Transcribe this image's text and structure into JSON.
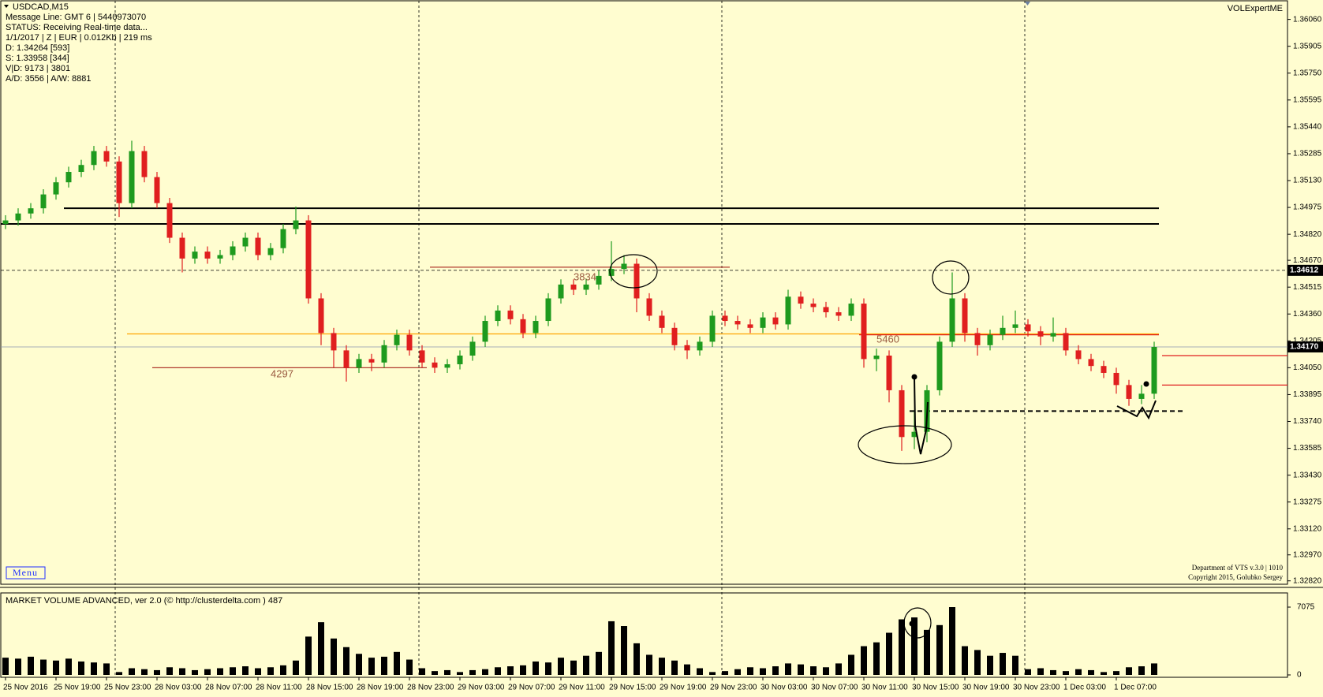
{
  "info": {
    "lines": [
      "Message Line: GMT 6 | 5440973070",
      "STATUS:  Receiving Real-time data...",
      "1/1/2017 | Z | EUR | 0.012Kb | 219 ms",
      "D: 1.34264  [593]",
      "S: 1.33958  [344]",
      "V|D: 9173 | 3801",
      "A/D: 3556 | A/W: 8881"
    ],
    "brand": "VOLExpertME",
    "menu": "Menu",
    "footer": [
      "Department of VTS  v.3.0 | 1010",
      "Copyright 2015, Golubko Sergey"
    ]
  },
  "chart_data": [
    {
      "type": "candlestick",
      "title": "USDCAD,M15",
      "open": [
        1.3488,
        1.349,
        1.3494,
        1.3497,
        1.3505,
        1.3512,
        1.3518,
        1.3522,
        1.353,
        1.3524,
        1.35,
        1.353,
        1.3515,
        1.35,
        1.348,
        1.3468,
        1.3472,
        1.3468,
        1.347,
        1.3475,
        1.348,
        1.347,
        1.3474,
        1.3485,
        1.349,
        1.3445,
        1.3425,
        1.3415,
        1.3405,
        1.341,
        1.3408,
        1.3418,
        1.3424,
        1.3415,
        1.3408,
        1.3405,
        1.3407,
        1.3412,
        1.342,
        1.3432,
        1.3438,
        1.3433,
        1.3425,
        1.3432,
        1.3445,
        1.3453,
        1.345,
        1.3453,
        1.3458,
        1.3462,
        1.3465,
        1.3445,
        1.3435,
        1.3428,
        1.3418,
        1.3415,
        1.342,
        1.3435,
        1.3432,
        1.343,
        1.3428,
        1.3434,
        1.343,
        1.3446,
        1.3442,
        1.344,
        1.3437,
        1.3435,
        1.3442,
        1.341,
        1.3412,
        1.3392,
        1.3365,
        1.3368,
        1.3392,
        1.342,
        1.3445,
        1.3425,
        1.3418,
        1.3424,
        1.3428,
        1.343,
        1.3426,
        1.3423,
        1.3425,
        1.3415,
        1.341,
        1.3406,
        1.3402,
        1.3395,
        1.3387,
        1.339
      ],
      "high": [
        1.3493,
        1.3497,
        1.35,
        1.3508,
        1.3515,
        1.3521,
        1.3525,
        1.3533,
        1.3533,
        1.3527,
        1.3536,
        1.3533,
        1.3518,
        1.3503,
        1.3483,
        1.3475,
        1.3475,
        1.3473,
        1.3478,
        1.3483,
        1.3483,
        1.3477,
        1.3488,
        1.3498,
        1.3493,
        1.3448,
        1.3428,
        1.3418,
        1.3413,
        1.3413,
        1.3421,
        1.3427,
        1.3427,
        1.3418,
        1.3411,
        1.341,
        1.3415,
        1.3423,
        1.3435,
        1.3441,
        1.3441,
        1.3436,
        1.3435,
        1.3448,
        1.3456,
        1.3456,
        1.3456,
        1.3461,
        1.3478,
        1.347,
        1.3468,
        1.3448,
        1.3438,
        1.3431,
        1.3421,
        1.3423,
        1.3438,
        1.3438,
        1.3435,
        1.3433,
        1.3437,
        1.3437,
        1.345,
        1.3449,
        1.3445,
        1.3443,
        1.344,
        1.3445,
        1.3445,
        1.3416,
        1.3415,
        1.3395,
        1.338,
        1.3395,
        1.3423,
        1.346,
        1.3448,
        1.3428,
        1.3427,
        1.3435,
        1.3438,
        1.3433,
        1.3429,
        1.3434,
        1.3428,
        1.3418,
        1.3413,
        1.3409,
        1.3405,
        1.3398,
        1.3395,
        1.342
      ],
      "low": [
        1.3485,
        1.3487,
        1.3491,
        1.3494,
        1.3502,
        1.3509,
        1.3515,
        1.3519,
        1.3521,
        1.3492,
        1.3497,
        1.3512,
        1.3497,
        1.3477,
        1.346,
        1.3465,
        1.3465,
        1.3465,
        1.3467,
        1.3472,
        1.3467,
        1.3467,
        1.3471,
        1.3482,
        1.3442,
        1.3418,
        1.3405,
        1.3397,
        1.3402,
        1.3403,
        1.3405,
        1.3415,
        1.3412,
        1.3405,
        1.3402,
        1.3402,
        1.3404,
        1.3409,
        1.3417,
        1.3429,
        1.343,
        1.3422,
        1.3422,
        1.3429,
        1.3442,
        1.3447,
        1.3447,
        1.345,
        1.3455,
        1.3459,
        1.3437,
        1.3432,
        1.3425,
        1.3415,
        1.341,
        1.3412,
        1.3417,
        1.3429,
        1.3427,
        1.3425,
        1.3425,
        1.3427,
        1.3427,
        1.3439,
        1.3437,
        1.3434,
        1.3432,
        1.3432,
        1.3405,
        1.3403,
        1.3385,
        1.3357,
        1.3358,
        1.3362,
        1.3389,
        1.3417,
        1.342,
        1.3412,
        1.3415,
        1.3421,
        1.3425,
        1.3423,
        1.3418,
        1.342,
        1.3412,
        1.3407,
        1.3403,
        1.3399,
        1.339,
        1.3383,
        1.3384,
        1.3387
      ],
      "close": [
        1.349,
        1.3494,
        1.3497,
        1.3505,
        1.3512,
        1.3518,
        1.3522,
        1.353,
        1.3524,
        1.35,
        1.353,
        1.3515,
        1.35,
        1.348,
        1.3468,
        1.3472,
        1.3468,
        1.347,
        1.3475,
        1.348,
        1.347,
        1.3474,
        1.3485,
        1.349,
        1.3445,
        1.3425,
        1.3415,
        1.3405,
        1.341,
        1.3408,
        1.3418,
        1.3424,
        1.3415,
        1.3408,
        1.3405,
        1.3407,
        1.3412,
        1.342,
        1.3432,
        1.3438,
        1.3433,
        1.3425,
        1.3432,
        1.3445,
        1.3453,
        1.345,
        1.3453,
        1.3458,
        1.3462,
        1.3465,
        1.3445,
        1.3435,
        1.3428,
        1.3418,
        1.3415,
        1.342,
        1.3435,
        1.3432,
        1.343,
        1.3428,
        1.3434,
        1.343,
        1.3446,
        1.3442,
        1.344,
        1.3437,
        1.3435,
        1.3442,
        1.341,
        1.3412,
        1.3392,
        1.3365,
        1.3368,
        1.3392,
        1.342,
        1.3445,
        1.3425,
        1.3418,
        1.3424,
        1.3428,
        1.343,
        1.3426,
        1.3423,
        1.3425,
        1.3415,
        1.341,
        1.3406,
        1.3402,
        1.3395,
        1.3387,
        1.339,
        1.3417
      ],
      "up_color": "#1e9a1e",
      "down_color": "#e01f1f",
      "ylim": [
        1.32805,
        1.36172
      ],
      "yticks": [
        {
          "value": 1.3606,
          "label": "1.36060"
        },
        {
          "value": 1.35905,
          "label": "1.35905"
        },
        {
          "value": 1.3575,
          "label": "1.35750"
        },
        {
          "value": 1.35595,
          "label": "1.35595"
        },
        {
          "value": 1.3544,
          "label": "1.35440"
        },
        {
          "value": 1.35285,
          "label": "1.35285"
        },
        {
          "value": 1.3513,
          "label": "1.35130"
        },
        {
          "value": 1.34975,
          "label": "1.34975"
        },
        {
          "value": 1.3482,
          "label": "1.34820"
        },
        {
          "value": 1.3467,
          "label": "1.34670"
        },
        {
          "value": 1.34515,
          "label": "1.34515"
        },
        {
          "value": 1.3436,
          "label": "1.34360"
        },
        {
          "value": 1.34205,
          "label": "1.34205"
        },
        {
          "value": 1.3405,
          "label": "1.34050"
        },
        {
          "value": 1.33895,
          "label": "1.33895"
        },
        {
          "value": 1.3374,
          "label": "1.33740"
        },
        {
          "value": 1.33585,
          "label": "1.33585"
        },
        {
          "value": 1.3343,
          "label": "1.33430"
        },
        {
          "value": 1.33275,
          "label": "1.33275"
        },
        {
          "value": 1.3312,
          "label": "1.33120"
        },
        {
          "value": 1.3297,
          "label": "1.32970"
        },
        {
          "value": 1.3282,
          "label": "1.32820"
        }
      ],
      "xticks": [
        {
          "value": 0,
          "label": "25 Nov 2016"
        },
        {
          "value": 4,
          "label": "25 Nov 19:00"
        },
        {
          "value": 8,
          "label": "25 Nov 23:00"
        },
        {
          "value": 12,
          "label": "28 Nov 03:00"
        },
        {
          "value": 16,
          "label": "28 Nov 07:00"
        },
        {
          "value": 20,
          "label": "28 Nov 11:00"
        },
        {
          "value": 24,
          "label": "28 Nov 15:00"
        },
        {
          "value": 28,
          "label": "28 Nov 19:00"
        },
        {
          "value": 32,
          "label": "28 Nov 23:00"
        },
        {
          "value": 36,
          "label": "29 Nov 03:00"
        },
        {
          "value": 40,
          "label": "29 Nov 07:00"
        },
        {
          "value": 44,
          "label": "29 Nov 11:00"
        },
        {
          "value": 48,
          "label": "29 Nov 15:00"
        },
        {
          "value": 52,
          "label": "29 Nov 19:00"
        },
        {
          "value": 56,
          "label": "29 Nov 23:00"
        },
        {
          "value": 60,
          "label": "30 Nov 03:00"
        },
        {
          "value": 64,
          "label": "30 Nov 07:00"
        },
        {
          "value": 68,
          "label": "30 Nov 11:00"
        },
        {
          "value": 72,
          "label": "30 Nov 15:00"
        },
        {
          "value": 76,
          "label": "30 Nov 19:00"
        },
        {
          "value": 80,
          "label": "30 Nov 23:00"
        },
        {
          "value": 84,
          "label": "1 Dec 03:00"
        },
        {
          "value": 88,
          "label": "1 Dec 07:00"
        }
      ],
      "levels": [
        {
          "value": 1.3497,
          "from": 5,
          "to": 91,
          "color": "#000000",
          "style": "solid"
        },
        {
          "value": 1.3488,
          "from": 0,
          "to": 91,
          "color": "#000000",
          "style": "solid"
        },
        {
          "value": 1.34245,
          "from": 10,
          "to": 91,
          "color": "#ffa500",
          "style": "solid"
        },
        {
          "value": 1.3463,
          "from": 34,
          "to": 57,
          "color": "#b03a2e",
          "style": "solid"
        },
        {
          "value": 1.3405,
          "from": 12,
          "to": 33,
          "color": "#b03a2e",
          "style": "solid"
        },
        {
          "value": 1.3424,
          "from": 68,
          "to": 91,
          "color": "#e01f1f",
          "style": "solid"
        },
        {
          "value": 1.338,
          "from": 72,
          "to": 93,
          "color": "#000000",
          "style": "dashed"
        },
        {
          "value": 1.3412,
          "from": 92,
          "to": 102,
          "color": "#e01f1f",
          "style": "solid"
        },
        {
          "value": 1.3395,
          "from": 92,
          "to": 102,
          "color": "#e01f1f",
          "style": "solid"
        }
      ],
      "poc_labels": [
        {
          "value": 1.3457,
          "bar": 45,
          "text": 3834
        },
        {
          "value": 1.3401,
          "bar": 21,
          "text": 4297
        },
        {
          "value": 1.3421,
          "bar": 69,
          "text": 5460
        }
      ],
      "price_markers": [
        {
          "value": 1.34612,
          "label": "1.34612",
          "style": "dashed"
        },
        {
          "value": 1.3417,
          "label": "1.34170",
          "style": "solid"
        }
      ]
    },
    {
      "type": "bar",
      "title": "MARKET VOLUME ADVANCED, ver 2.0 (© http://clusterdelta.com ) 487",
      "color": "#000000",
      "values": [
        1800,
        1700,
        1900,
        1600,
        1500,
        1700,
        1400,
        1300,
        1200,
        300,
        700,
        600,
        500,
        800,
        700,
        500,
        600,
        700,
        800,
        900,
        700,
        800,
        1000,
        1500,
        4000,
        5500,
        3800,
        2900,
        2200,
        1800,
        1900,
        2400,
        1600,
        700,
        400,
        500,
        300,
        500,
        600,
        800,
        900,
        1000,
        1400,
        1300,
        1800,
        1500,
        2000,
        2400,
        5600,
        5100,
        3300,
        2100,
        1800,
        1500,
        1100,
        700,
        300,
        400,
        600,
        800,
        700,
        900,
        1200,
        1100,
        900,
        800,
        1200,
        2100,
        3000,
        3400,
        4400,
        5800,
        6000,
        4700,
        5200,
        7075,
        3000,
        2600,
        2000,
        2300,
        2000,
        600,
        700,
        500,
        400,
        600,
        500,
        300,
        400,
        800,
        900,
        1200
      ],
      "ylim": [
        0,
        7075
      ],
      "yticks": [
        0,
        7075
      ]
    }
  ]
}
